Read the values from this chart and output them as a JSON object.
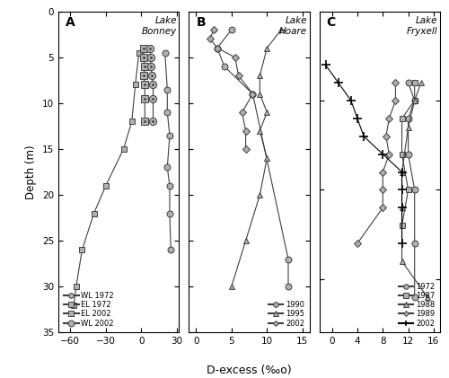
{
  "panel_A": {
    "title": "Lake\nBonney",
    "label": "A",
    "xlim": [
      -70,
      32
    ],
    "xticks": [
      -60,
      -30,
      0,
      30
    ],
    "ylim": [
      35,
      0
    ],
    "yticks": [
      0,
      5,
      10,
      15,
      20,
      25,
      30,
      35
    ],
    "series": {
      "WL 1972": {
        "depth": [
          4.5,
          8.5,
          11,
          13.5,
          17,
          19,
          22,
          26
        ],
        "dexcess": [
          20,
          22,
          22,
          24,
          22,
          24,
          24,
          25
        ]
      },
      "EL 1972": {
        "depth": [
          4.5,
          8,
          12,
          15,
          19,
          22,
          26,
          30,
          32
        ],
        "dexcess": [
          -2,
          -5,
          -8,
          -15,
          -30,
          -40,
          -50,
          -55,
          -57
        ]
      },
      "EL 2002": {
        "depth": [
          4,
          5,
          6,
          7,
          8,
          9.5,
          12
        ],
        "dexcess": [
          2,
          2,
          3,
          2,
          3,
          3,
          3
        ]
      },
      "WL 2002": {
        "depth": [
          4,
          5,
          6,
          7,
          8,
          9.5,
          12
        ],
        "dexcess": [
          7,
          8,
          8,
          9,
          10,
          10,
          10
        ]
      }
    }
  },
  "panel_B": {
    "title": "Lake\nHoare",
    "label": "B",
    "xlim": [
      -1,
      16
    ],
    "xticks": [
      0,
      5,
      10,
      15
    ],
    "ylim": [
      35,
      0
    ],
    "yticks": [
      0,
      5,
      10,
      15,
      20,
      25,
      30,
      35
    ],
    "series": {
      "1990": {
        "depth": [
          2,
          4,
          6,
          9,
          27,
          30
        ],
        "dexcess": [
          5,
          3,
          4,
          8,
          13,
          13
        ]
      },
      "1995": {
        "depth": [
          2,
          4,
          7,
          9,
          11,
          13,
          16,
          20,
          25,
          30
        ],
        "dexcess": [
          12,
          10,
          9,
          9,
          10,
          9,
          10,
          9,
          7,
          5
        ]
      },
      "2002": {
        "depth": [
          2,
          3,
          4,
          5,
          7,
          9,
          11,
          13,
          15
        ],
        "dexcess": [
          2.5,
          2,
          3,
          5.5,
          6,
          8,
          6.5,
          7,
          7
        ]
      }
    }
  },
  "panel_C": {
    "title": "Lake\nFryxell",
    "label": "C",
    "xlim": [
      -2,
      17
    ],
    "xticks": [
      0,
      4,
      8,
      12,
      16
    ],
    "ylim": [
      18,
      0
    ],
    "yticks": [
      0,
      5,
      10,
      15
    ],
    "series": {
      "1972": {
        "depth": [
          4,
          5,
          6,
          8,
          10,
          13,
          16
        ],
        "dexcess": [
          12,
          13,
          12,
          12,
          13,
          13,
          13
        ]
      },
      "1987": {
        "depth": [
          4,
          5,
          6,
          8,
          10,
          12
        ],
        "dexcess": [
          13,
          13,
          11,
          11,
          12,
          11
        ]
      },
      "1988": {
        "depth": [
          4,
          5,
          6.5,
          9,
          11,
          14,
          16
        ],
        "dexcess": [
          14,
          13,
          12,
          11,
          11,
          11,
          15
        ]
      },
      "1989": {
        "depth": [
          4,
          5,
          6,
          7,
          8,
          9,
          10,
          11,
          13
        ],
        "dexcess": [
          10,
          10,
          9,
          8.5,
          9,
          8,
          8,
          8,
          4
        ]
      },
      "2002": {
        "depth": [
          3,
          4,
          5,
          6,
          7,
          8,
          9,
          10,
          11,
          13
        ],
        "dexcess": [
          -1,
          1,
          3,
          4,
          5,
          8,
          11,
          11,
          11,
          11
        ]
      }
    }
  },
  "xlabel": "D-excess (‰o)",
  "ylabel": "Depth (m)",
  "marker_size": 5,
  "line_width": 0.8
}
